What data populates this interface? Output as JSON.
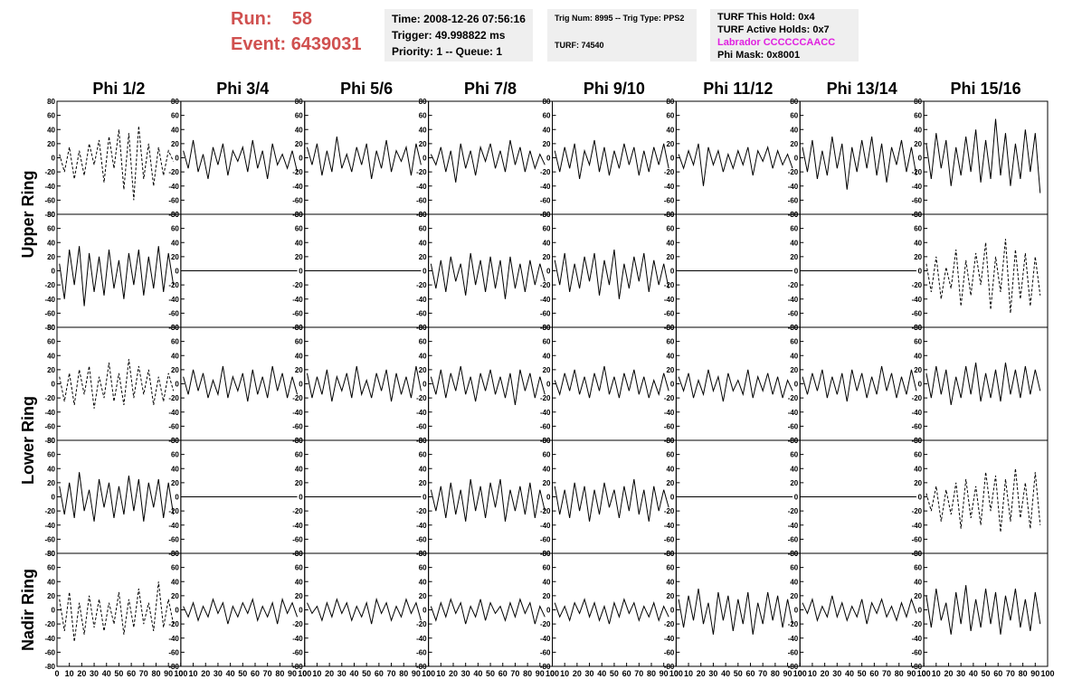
{
  "header": {
    "run_label": "Run:",
    "run": 58,
    "event_label": "Event:",
    "event": 6439031,
    "time": "Time: 2008-12-26 07:56:16",
    "trigger": "Trigger: 49.998822 ms",
    "priority": "Priority: 1 -- Queue: 1",
    "trig_num": "Trig Num: 8995 -- Trig Type: PPS2",
    "turf": "TURF: 74540",
    "turf_hold": "TURF This Hold: 0x4",
    "turf_active": "TURF Active Holds: 0x7",
    "labrador": "Labrador CCCCCCAACC",
    "phi_mask": "Phi Mask: 0x8001"
  },
  "columns": [
    "Phi 1/2",
    "Phi 3/4",
    "Phi 5/6",
    "Phi 7/8",
    "Phi 9/10",
    "Phi 11/12",
    "Phi 13/14",
    "Phi 15/16"
  ],
  "rows": [
    "Upper Ring",
    "Lower Ring",
    "Nadir Ring"
  ],
  "axes": {
    "xlim": [
      0,
      100
    ],
    "ylim": [
      -80,
      80
    ],
    "xticks": [
      0,
      10,
      20,
      30,
      40,
      50,
      60,
      70,
      80,
      90,
      100
    ],
    "yticks": [
      -80,
      -60,
      -40,
      -20,
      0,
      20,
      40,
      60,
      80
    ],
    "x": [
      2,
      6,
      10,
      14,
      18,
      22,
      26,
      30,
      34,
      38,
      42,
      46,
      50,
      54,
      58,
      62,
      66,
      70,
      74,
      78,
      82,
      86,
      90,
      94
    ]
  },
  "chart_data": [
    {
      "type": "line",
      "style": "dashed",
      "values": [
        5,
        -20,
        15,
        -30,
        10,
        -25,
        20,
        -10,
        25,
        -35,
        30,
        -15,
        40,
        -45,
        35,
        -60,
        45,
        -30,
        20,
        -40,
        15,
        -25,
        10,
        -5
      ]
    },
    {
      "type": "line",
      "style": "solid",
      "values": [
        10,
        -15,
        25,
        -20,
        5,
        -30,
        15,
        -10,
        20,
        -25,
        10,
        -5,
        15,
        -20,
        25,
        -15,
        10,
        -30,
        20,
        -10,
        5,
        -15,
        10,
        -20
      ]
    },
    {
      "type": "line",
      "style": "solid",
      "values": [
        15,
        -10,
        20,
        -25,
        10,
        -20,
        30,
        -15,
        5,
        -20,
        15,
        -10,
        20,
        -30,
        10,
        -15,
        25,
        -20,
        10,
        -5,
        15,
        -25,
        20,
        -10
      ]
    },
    {
      "type": "line",
      "style": "solid",
      "values": [
        5,
        -10,
        15,
        -20,
        10,
        -35,
        20,
        -15,
        10,
        -25,
        15,
        -5,
        20,
        -15,
        10,
        -20,
        25,
        -10,
        15,
        -20,
        10,
        -15,
        5,
        -10
      ]
    },
    {
      "type": "line",
      "style": "solid",
      "values": [
        10,
        -20,
        15,
        -15,
        20,
        -30,
        10,
        -10,
        25,
        -20,
        15,
        -25,
        10,
        -15,
        20,
        -10,
        15,
        -25,
        10,
        -20,
        15,
        -10,
        20,
        -15
      ]
    },
    {
      "type": "line",
      "style": "solid",
      "values": [
        5,
        -15,
        10,
        -10,
        20,
        -40,
        15,
        -10,
        10,
        -20,
        5,
        -15,
        10,
        -10,
        15,
        -25,
        10,
        -5,
        15,
        -15,
        10,
        -10,
        5,
        -15
      ]
    },
    {
      "type": "line",
      "style": "solid",
      "values": [
        15,
        -20,
        25,
        -30,
        10,
        -25,
        30,
        -15,
        20,
        -45,
        15,
        -20,
        25,
        -15,
        30,
        -25,
        20,
        -35,
        15,
        -10,
        25,
        -20,
        15,
        -25
      ]
    },
    {
      "type": "line",
      "style": "solid",
      "values": [
        20,
        -30,
        35,
        -15,
        25,
        -40,
        15,
        -25,
        30,
        -20,
        40,
        -35,
        25,
        -30,
        55,
        -25,
        35,
        -40,
        20,
        -30,
        40,
        -20,
        35,
        -50
      ]
    },
    {
      "type": "line",
      "style": "solid",
      "values": [
        10,
        -40,
        30,
        -20,
        35,
        -50,
        25,
        -30,
        20,
        -35,
        30,
        -25,
        15,
        -40,
        25,
        -20,
        30,
        -35,
        20,
        -25,
        35,
        -30,
        25,
        -20
      ]
    },
    {
      "type": "line",
      "style": "solid",
      "values": [
        0,
        0,
        0,
        0,
        0,
        0,
        0,
        0,
        0,
        0,
        0,
        0,
        0,
        0,
        0,
        0,
        0,
        0,
        0,
        0,
        0,
        0,
        0,
        0
      ]
    },
    {
      "type": "line",
      "style": "solid",
      "values": [
        0,
        0,
        0,
        0,
        0,
        0,
        0,
        0,
        0,
        0,
        0,
        0,
        0,
        0,
        0,
        0,
        0,
        0,
        0,
        0,
        0,
        0,
        0,
        0
      ]
    },
    {
      "type": "line",
      "style": "solid",
      "values": [
        10,
        -25,
        15,
        -30,
        20,
        -15,
        10,
        -35,
        25,
        -20,
        15,
        -30,
        20,
        -25,
        15,
        -40,
        20,
        -25,
        10,
        -30,
        15,
        -20,
        10,
        -15
      ]
    },
    {
      "type": "line",
      "style": "solid",
      "values": [
        15,
        -20,
        25,
        -30,
        10,
        -25,
        20,
        -15,
        25,
        -35,
        15,
        -20,
        30,
        -40,
        10,
        -25,
        20,
        -15,
        25,
        -30,
        15,
        -20,
        10,
        -25
      ]
    },
    {
      "type": "line",
      "style": "solid",
      "values": [
        0,
        0,
        0,
        0,
        0,
        0,
        0,
        0,
        0,
        0,
        0,
        0,
        0,
        0,
        0,
        0,
        0,
        0,
        0,
        0,
        0,
        0,
        0,
        0
      ]
    },
    {
      "type": "line",
      "style": "solid",
      "values": [
        0,
        0,
        0,
        0,
        0,
        0,
        0,
        0,
        0,
        0,
        0,
        0,
        0,
        0,
        0,
        0,
        0,
        0,
        0,
        0,
        0,
        0,
        0,
        0
      ]
    },
    {
      "type": "line",
      "style": "dashed",
      "values": [
        10,
        -30,
        20,
        -40,
        5,
        -25,
        30,
        -50,
        15,
        -35,
        25,
        -20,
        40,
        -55,
        20,
        -30,
        45,
        -60,
        30,
        -40,
        25,
        -50,
        20,
        -35
      ]
    },
    {
      "type": "line",
      "style": "dashed",
      "values": [
        10,
        -25,
        15,
        -30,
        20,
        -15,
        25,
        -35,
        10,
        -20,
        30,
        -25,
        15,
        -30,
        35,
        -20,
        25,
        -15,
        20,
        -30,
        10,
        -25,
        15,
        -10
      ]
    },
    {
      "type": "line",
      "style": "solid",
      "values": [
        10,
        -15,
        20,
        -10,
        15,
        -20,
        5,
        -15,
        25,
        -20,
        10,
        -10,
        15,
        -25,
        20,
        -15,
        10,
        -20,
        25,
        -10,
        15,
        -20,
        10,
        -15
      ]
    },
    {
      "type": "line",
      "style": "solid",
      "values": [
        15,
        -20,
        10,
        -15,
        20,
        -25,
        10,
        -10,
        15,
        -20,
        25,
        -15,
        5,
        -20,
        15,
        -10,
        20,
        -25,
        15,
        -15,
        10,
        -20,
        25,
        -10
      ]
    },
    {
      "type": "line",
      "style": "solid",
      "values": [
        10,
        -15,
        20,
        -20,
        15,
        -10,
        25,
        -15,
        10,
        -25,
        15,
        -10,
        20,
        -15,
        10,
        -20,
        15,
        -30,
        20,
        -10,
        15,
        -20,
        10,
        -15
      ]
    },
    {
      "type": "line",
      "style": "solid",
      "values": [
        5,
        -15,
        15,
        -10,
        20,
        -15,
        10,
        -20,
        15,
        -10,
        25,
        -15,
        10,
        -20,
        15,
        -10,
        20,
        -15,
        10,
        -20,
        5,
        -15,
        15,
        -10
      ]
    },
    {
      "type": "line",
      "style": "solid",
      "values": [
        10,
        -10,
        15,
        -20,
        5,
        -15,
        20,
        -10,
        10,
        -25,
        15,
        -10,
        5,
        -15,
        20,
        -20,
        10,
        -10,
        15,
        -15,
        10,
        -20,
        5,
        -10
      ]
    },
    {
      "type": "line",
      "style": "solid",
      "values": [
        10,
        -15,
        15,
        -10,
        20,
        -20,
        10,
        -15,
        15,
        -25,
        20,
        -10,
        15,
        -20,
        10,
        -15,
        25,
        -10,
        15,
        -20,
        10,
        -15,
        20,
        -10
      ]
    },
    {
      "type": "line",
      "style": "solid",
      "values": [
        15,
        -20,
        25,
        -15,
        20,
        -30,
        10,
        -20,
        25,
        -15,
        30,
        -25,
        15,
        -20,
        20,
        -25,
        30,
        -15,
        20,
        -20,
        25,
        -15,
        20,
        -10
      ]
    },
    {
      "type": "line",
      "style": "solid",
      "values": [
        15,
        -25,
        20,
        -30,
        35,
        -20,
        10,
        -35,
        25,
        -15,
        20,
        -30,
        15,
        -25,
        30,
        -20,
        25,
        -35,
        20,
        -15,
        25,
        -30,
        20,
        -25
      ]
    },
    {
      "type": "line",
      "style": "solid",
      "values": [
        0,
        0,
        0,
        0,
        0,
        0,
        0,
        0,
        0,
        0,
        0,
        0,
        0,
        0,
        0,
        0,
        0,
        0,
        0,
        0,
        0,
        0,
        0,
        0
      ]
    },
    {
      "type": "line",
      "style": "solid",
      "values": [
        0,
        0,
        0,
        0,
        0,
        0,
        0,
        0,
        0,
        0,
        0,
        0,
        0,
        0,
        0,
        0,
        0,
        0,
        0,
        0,
        0,
        0,
        0,
        0
      ]
    },
    {
      "type": "line",
      "style": "solid",
      "values": [
        10,
        -20,
        15,
        -30,
        20,
        -25,
        10,
        -35,
        25,
        -20,
        15,
        -30,
        20,
        -15,
        25,
        -35,
        10,
        -20,
        15,
        -25,
        20,
        -30,
        10,
        -20
      ]
    },
    {
      "type": "line",
      "style": "solid",
      "values": [
        15,
        -25,
        10,
        -30,
        20,
        -20,
        15,
        -35,
        10,
        -25,
        20,
        -15,
        10,
        -30,
        15,
        -20,
        25,
        -25,
        10,
        -35,
        15,
        -20,
        10,
        -15
      ]
    },
    {
      "type": "line",
      "style": "solid",
      "values": [
        0,
        0,
        0,
        0,
        0,
        0,
        0,
        0,
        0,
        0,
        0,
        0,
        0,
        0,
        0,
        0,
        0,
        0,
        0,
        0,
        0,
        0,
        0,
        0
      ]
    },
    {
      "type": "line",
      "style": "solid",
      "values": [
        0,
        0,
        0,
        0,
        0,
        0,
        0,
        0,
        0,
        0,
        0,
        0,
        0,
        0,
        0,
        0,
        0,
        0,
        0,
        0,
        0,
        0,
        0,
        0
      ]
    },
    {
      "type": "line",
      "style": "dashed",
      "values": [
        5,
        -20,
        15,
        -35,
        10,
        -25,
        20,
        -45,
        25,
        -30,
        15,
        -40,
        35,
        -20,
        30,
        -50,
        25,
        -35,
        40,
        -30,
        20,
        -45,
        35,
        -40
      ]
    },
    {
      "type": "line",
      "style": "dashed",
      "values": [
        15,
        -30,
        25,
        -45,
        10,
        -35,
        20,
        -25,
        15,
        -30,
        10,
        -20,
        25,
        -35,
        15,
        -25,
        30,
        -20,
        10,
        -30,
        40,
        -25,
        15,
        -20
      ]
    },
    {
      "type": "line",
      "style": "solid",
      "values": [
        5,
        -10,
        10,
        -15,
        5,
        -10,
        15,
        -5,
        10,
        -20,
        5,
        -10,
        10,
        -5,
        15,
        -15,
        5,
        -10,
        10,
        -20,
        15,
        -5,
        10,
        -10
      ]
    },
    {
      "type": "line",
      "style": "solid",
      "values": [
        10,
        -5,
        5,
        -15,
        10,
        -10,
        15,
        -5,
        10,
        -15,
        5,
        -10,
        10,
        -20,
        15,
        -5,
        10,
        -15,
        5,
        -10,
        15,
        -5,
        10,
        -15
      ]
    },
    {
      "type": "line",
      "style": "solid",
      "values": [
        5,
        -15,
        10,
        -10,
        15,
        -5,
        10,
        -20,
        5,
        -10,
        15,
        -15,
        10,
        -5,
        5,
        -15,
        10,
        -10,
        15,
        -5,
        10,
        -20,
        5,
        -10
      ]
    },
    {
      "type": "line",
      "style": "solid",
      "values": [
        10,
        -10,
        5,
        -15,
        10,
        -5,
        15,
        -10,
        10,
        -15,
        5,
        -20,
        10,
        -10,
        15,
        -5,
        10,
        -15,
        5,
        -10,
        10,
        -15,
        5,
        -10
      ]
    },
    {
      "type": "line",
      "style": "solid",
      "values": [
        15,
        -25,
        20,
        -15,
        30,
        -20,
        10,
        -35,
        25,
        -15,
        20,
        -30,
        15,
        -20,
        25,
        -35,
        10,
        -20,
        25,
        -15,
        20,
        -25,
        15,
        -20
      ]
    },
    {
      "type": "line",
      "style": "solid",
      "values": [
        10,
        -5,
        15,
        -15,
        5,
        -10,
        20,
        -10,
        10,
        -15,
        5,
        -10,
        15,
        -20,
        10,
        -5,
        15,
        -10,
        5,
        -15,
        10,
        -10,
        15,
        -5
      ]
    },
    {
      "type": "line",
      "style": "solid",
      "values": [
        20,
        -25,
        30,
        -15,
        10,
        -35,
        25,
        -20,
        35,
        -30,
        15,
        -25,
        30,
        -20,
        25,
        -35,
        20,
        -15,
        30,
        -25,
        15,
        -30,
        25,
        -20
      ]
    }
  ]
}
